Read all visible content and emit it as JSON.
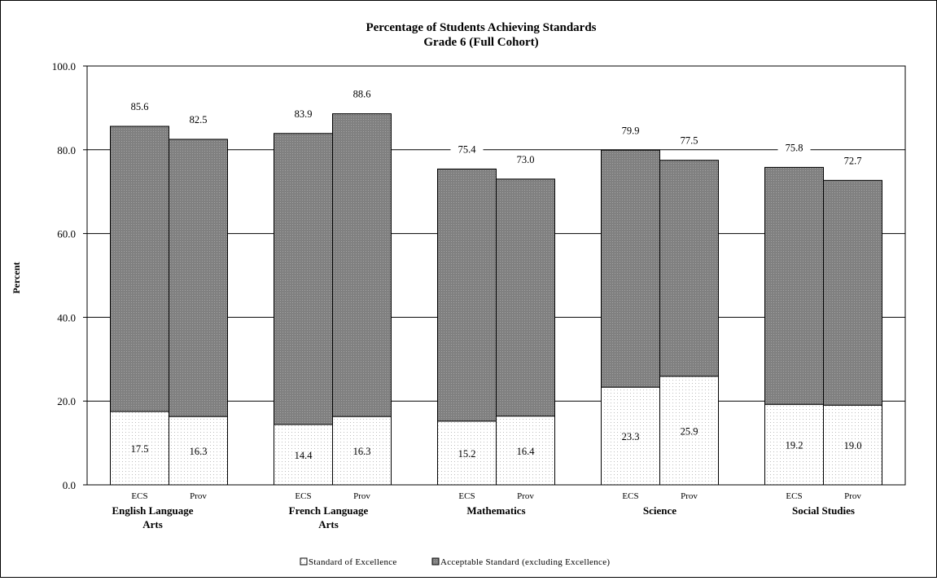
{
  "chart_data": {
    "type": "bar",
    "stacked": true,
    "title": "Percentage of Students Achieving Standards",
    "subtitle": "Grade 6 (Full Cohort)",
    "ylabel": "Percent",
    "ylim": [
      0,
      100
    ],
    "yticks": [
      "0.0",
      "20.0",
      "40.0",
      "60.0",
      "80.0",
      "100.0"
    ],
    "grid": "horizontal",
    "legend_position": "bottom",
    "colors": {
      "excellence": "#ffffff",
      "acceptable": "#808080"
    },
    "groups": [
      {
        "label": [
          "English Language",
          "Arts"
        ],
        "bars": [
          {
            "sub": "ECS",
            "excellence": 17.5,
            "total": 85.6,
            "excellence_label": "17.5",
            "total_label": "85.6"
          },
          {
            "sub": "Prov",
            "excellence": 16.3,
            "total": 82.5,
            "excellence_label": "16.3",
            "total_label": "82.5"
          }
        ]
      },
      {
        "label": [
          "French Language",
          "Arts"
        ],
        "bars": [
          {
            "sub": "ECS",
            "excellence": 14.4,
            "total": 83.9,
            "excellence_label": "14.4",
            "total_label": "83.9"
          },
          {
            "sub": "Prov",
            "excellence": 16.3,
            "total": 88.6,
            "excellence_label": "16.3",
            "total_label": "88.6"
          }
        ]
      },
      {
        "label": [
          "Mathematics"
        ],
        "bars": [
          {
            "sub": "ECS",
            "excellence": 15.2,
            "total": 75.4,
            "excellence_label": "15.2",
            "total_label": "75.4"
          },
          {
            "sub": "Prov",
            "excellence": 16.4,
            "total": 73.0,
            "excellence_label": "16.4",
            "total_label": "73.0"
          }
        ]
      },
      {
        "label": [
          "Science"
        ],
        "bars": [
          {
            "sub": "ECS",
            "excellence": 23.3,
            "total": 79.9,
            "excellence_label": "23.3",
            "total_label": "79.9"
          },
          {
            "sub": "Prov",
            "excellence": 25.9,
            "total": 77.5,
            "excellence_label": "25.9",
            "total_label": "77.5"
          }
        ]
      },
      {
        "label": [
          "Social  Studies"
        ],
        "bars": [
          {
            "sub": "ECS",
            "excellence": 19.2,
            "total": 75.8,
            "excellence_label": "19.2",
            "total_label": "75.8"
          },
          {
            "sub": "Prov",
            "excellence": 19.0,
            "total": 72.7,
            "excellence_label": "19.0",
            "total_label": "72.7"
          }
        ]
      }
    ],
    "legend": [
      {
        "key": "excellence",
        "label": "Standard of Excellence"
      },
      {
        "key": "acceptable",
        "label": "Acceptable Standard (excluding Excellence)"
      }
    ]
  }
}
